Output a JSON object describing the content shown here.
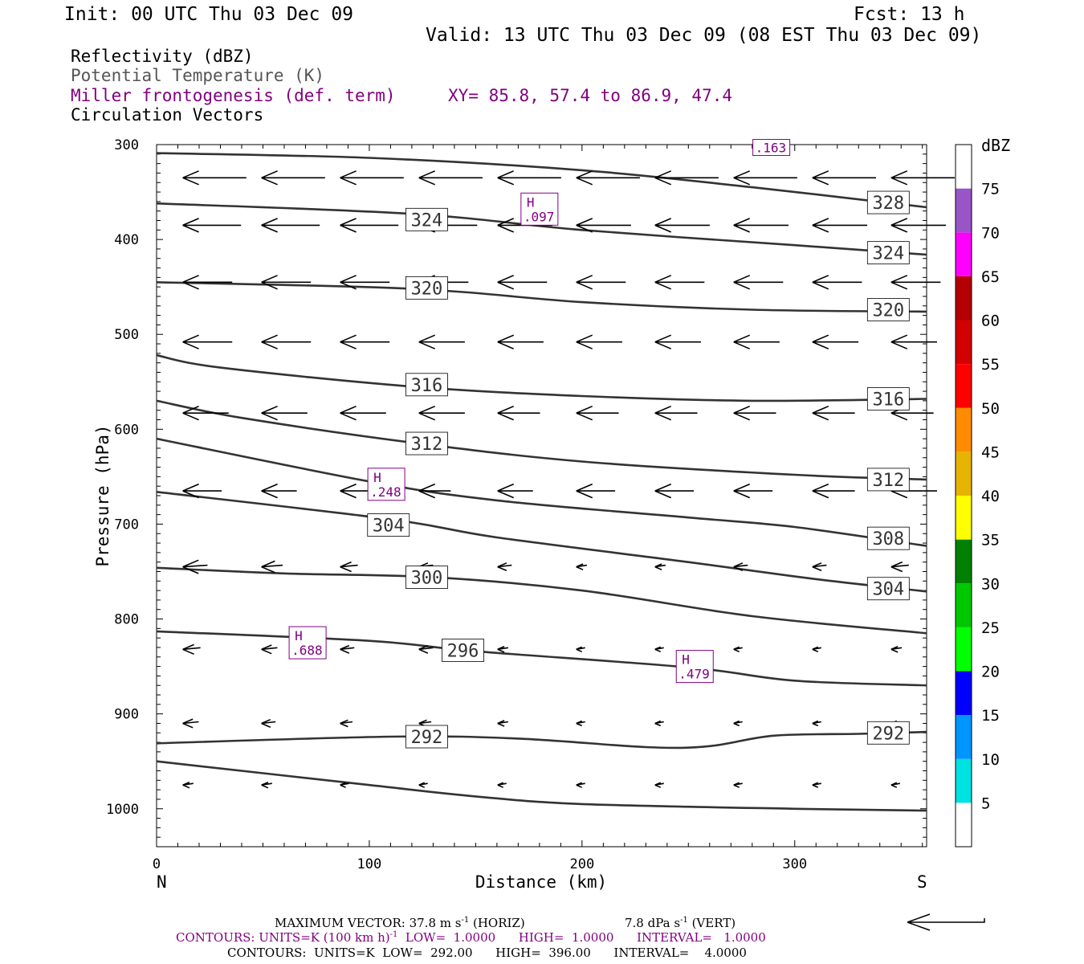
{
  "header": {
    "init": "Init: 00 UTC Thu 03 Dec 09",
    "fcst": "Fcst:   13 h",
    "valid": "Valid: 13 UTC Thu 03 Dec 09 (08 EST Thu 03 Dec 09)",
    "fields": [
      {
        "text": "Reflectivity (dBZ)",
        "color": "#000000"
      },
      {
        "text": "Potential Temperature (K)",
        "color": "#555555"
      },
      {
        "text": "Miller frontogenesis (def. term)",
        "color": "#800080"
      },
      {
        "text": "Circulation Vectors",
        "color": "#000000"
      }
    ],
    "xy": "XY=  85.8, 57.4 to  86.9, 47.4"
  },
  "footer": {
    "max_vector": "MAXIMUM VECTOR:  37.8 m s",
    "max_vector_horiz": " (HORIZ)",
    "max_vector_vert": "7.8 dPa s",
    "max_vector_vert_tail": " (VERT)",
    "contours1_a": "CONTOURS:  UNITS=K (100 km h)",
    "contours1_b": "  LOW=  1.0000      HIGH=  1.0000      INTERVAL=   1.0000",
    "contours2": "CONTOURS:  UNITS=K  LOW=  292.00      HIGH=  396.00      INTERVAL=    4.0000",
    "exp": "-1"
  },
  "colors": {
    "theta": "#333333",
    "frontogenesis": "#800080",
    "vectors": "#000000"
  },
  "chart_data": {
    "type": "cross-section",
    "xlabel": "Distance (km)",
    "ylabel": "Pressure (hPa)",
    "xlim": [
      0,
      362
    ],
    "ylim": [
      1040,
      300
    ],
    "x_ticks": [
      0,
      100,
      200,
      300
    ],
    "y_ticks": [
      300,
      400,
      500,
      600,
      700,
      800,
      900,
      1000
    ],
    "x_end_labels": {
      "left": "N",
      "right": "S"
    },
    "theta_contours": [
      {
        "label": "328",
        "points": [
          [
            0,
            309
          ],
          [
            100,
            314
          ],
          [
            200,
            327
          ],
          [
            280,
            345
          ],
          [
            362,
            366
          ]
        ],
        "label_at": [
          [
            344,
            361
          ]
        ]
      },
      {
        "label": "324",
        "points": [
          [
            0,
            362
          ],
          [
            120,
            373
          ],
          [
            200,
            390
          ],
          [
            300,
            406
          ],
          [
            362,
            416
          ]
        ],
        "label_at": [
          [
            127,
            379
          ],
          [
            344,
            414
          ]
        ]
      },
      {
        "label": "320",
        "points": [
          [
            0,
            445
          ],
          [
            120,
            452
          ],
          [
            200,
            466
          ],
          [
            280,
            474
          ],
          [
            362,
            476
          ]
        ],
        "label_at": [
          [
            127,
            451
          ],
          [
            344,
            474
          ]
        ]
      },
      {
        "label": "316",
        "points": [
          [
            0,
            522
          ],
          [
            30,
            535
          ],
          [
            120,
            555
          ],
          [
            200,
            565
          ],
          [
            280,
            570
          ],
          [
            362,
            568
          ]
        ],
        "label_at": [
          [
            127,
            553
          ],
          [
            344,
            568
          ]
        ]
      },
      {
        "label": "312",
        "points": [
          [
            0,
            570
          ],
          [
            40,
            588
          ],
          [
            120,
            614
          ],
          [
            200,
            634
          ],
          [
            300,
            648
          ],
          [
            362,
            653
          ]
        ],
        "label_at": [
          [
            127,
            615
          ],
          [
            344,
            653
          ]
        ]
      },
      {
        "label": "308",
        "points": [
          [
            0,
            610
          ],
          [
            100,
            655
          ],
          [
            160,
            675
          ],
          [
            250,
            693
          ],
          [
            300,
            703
          ],
          [
            362,
            723
          ]
        ],
        "label_at": [
          [
            344,
            715
          ]
        ]
      },
      {
        "label": "304",
        "points": [
          [
            0,
            666
          ],
          [
            110,
            695
          ],
          [
            160,
            714
          ],
          [
            250,
            740
          ],
          [
            310,
            758
          ],
          [
            362,
            771
          ]
        ],
        "label_at": [
          [
            109,
            701
          ],
          [
            344,
            768
          ]
        ]
      },
      {
        "label": "300",
        "points": [
          [
            0,
            746
          ],
          [
            60,
            752
          ],
          [
            130,
            756
          ],
          [
            200,
            770
          ],
          [
            280,
            797
          ],
          [
            362,
            815
          ]
        ],
        "label_at": [
          [
            127,
            756
          ]
        ]
      },
      {
        "label": "296",
        "points": [
          [
            0,
            813
          ],
          [
            100,
            823
          ],
          [
            150,
            834
          ],
          [
            250,
            851
          ],
          [
            300,
            865
          ],
          [
            362,
            870
          ]
        ],
        "label_at": [
          [
            144,
            833
          ]
        ]
      },
      {
        "label": "292",
        "points": [
          [
            0,
            931
          ],
          [
            110,
            924
          ],
          [
            170,
            926
          ],
          [
            230,
            935
          ],
          [
            260,
            934
          ],
          [
            290,
            923
          ],
          [
            330,
            921
          ],
          [
            362,
            919
          ]
        ],
        "label_at": [
          [
            127,
            924
          ],
          [
            344,
            920
          ]
        ]
      },
      {
        "label": "",
        "points": [
          [
            0,
            950
          ],
          [
            100,
            975
          ],
          [
            150,
            987
          ],
          [
            200,
            995
          ],
          [
            300,
            1000
          ],
          [
            362,
            1002
          ]
        ],
        "label_at": []
      }
    ],
    "frontogenesis_highs": [
      {
        "label": "H",
        "value": ".097",
        "x": 180,
        "p": 368
      },
      {
        "label": "H",
        "value": ".248",
        "x": 108,
        "p": 658
      },
      {
        "label": "H",
        "value": ".688",
        "x": 71,
        "p": 825
      },
      {
        "label": "H",
        "value": ".479",
        "x": 253,
        "p": 850
      },
      {
        "label": "",
        "value": ".163",
        "x": 289,
        "p": 303
      }
    ],
    "vectors": {
      "columns_x": [
        4,
        41,
        78,
        115,
        152,
        189,
        226,
        263,
        300,
        337
      ],
      "rows": [
        {
          "p": 335,
          "dx": [
            -36,
            -36,
            -36,
            -36,
            -36,
            -36,
            -36,
            -36,
            -36,
            -36
          ]
        },
        {
          "p": 385,
          "dx": [
            -33,
            -33,
            -33,
            -33,
            -31,
            -31,
            -31,
            -31,
            -31,
            -31
          ]
        },
        {
          "p": 445,
          "dx": [
            -28,
            -28,
            -28,
            -28,
            -28,
            -28,
            -28,
            -28,
            -28,
            -28
          ]
        },
        {
          "p": 508,
          "dx": [
            -28,
            -28,
            -28,
            -26,
            -26,
            -26,
            -26,
            -26,
            -26,
            -26
          ]
        },
        {
          "p": 583,
          "dx": [
            -26,
            -26,
            -26,
            -26,
            -24,
            -24,
            -24,
            -24,
            -24,
            -24
          ]
        },
        {
          "p": 665,
          "dx": [
            -22,
            -20,
            -18,
            -18,
            -20,
            -22,
            -22,
            -22,
            -24,
            -26
          ]
        },
        {
          "p": 745,
          "dx": [
            -14,
            -12,
            -10,
            -8,
            -8,
            -6,
            -6,
            -8,
            -8,
            -10
          ]
        },
        {
          "p": 832,
          "dx": [
            -10,
            -9,
            -8,
            -8,
            -6,
            -5,
            -5,
            -5,
            -5,
            -6
          ]
        },
        {
          "p": 910,
          "dx": [
            -9,
            -8,
            -7,
            -7,
            -6,
            -5,
            -5,
            -5,
            -5,
            -5
          ]
        },
        {
          "p": 975,
          "dx": [
            -6,
            -6,
            -5,
            -5,
            -5,
            -5,
            -5,
            -5,
            -5,
            -5
          ]
        }
      ]
    },
    "colorbar": {
      "title": "dBZ",
      "levels": [
        "5",
        "10",
        "15",
        "20",
        "25",
        "30",
        "35",
        "40",
        "45",
        "50",
        "55",
        "60",
        "65",
        "70",
        "75"
      ],
      "colors": [
        "#ffffff",
        "#00e1e1",
        "#0096ff",
        "#0000ff",
        "#00ff00",
        "#00c800",
        "#008000",
        "#ffff00",
        "#e6b400",
        "#ff8c00",
        "#ff0000",
        "#d20000",
        "#b40000",
        "#ff00ff",
        "#9955c8",
        "#ffffff"
      ]
    }
  }
}
